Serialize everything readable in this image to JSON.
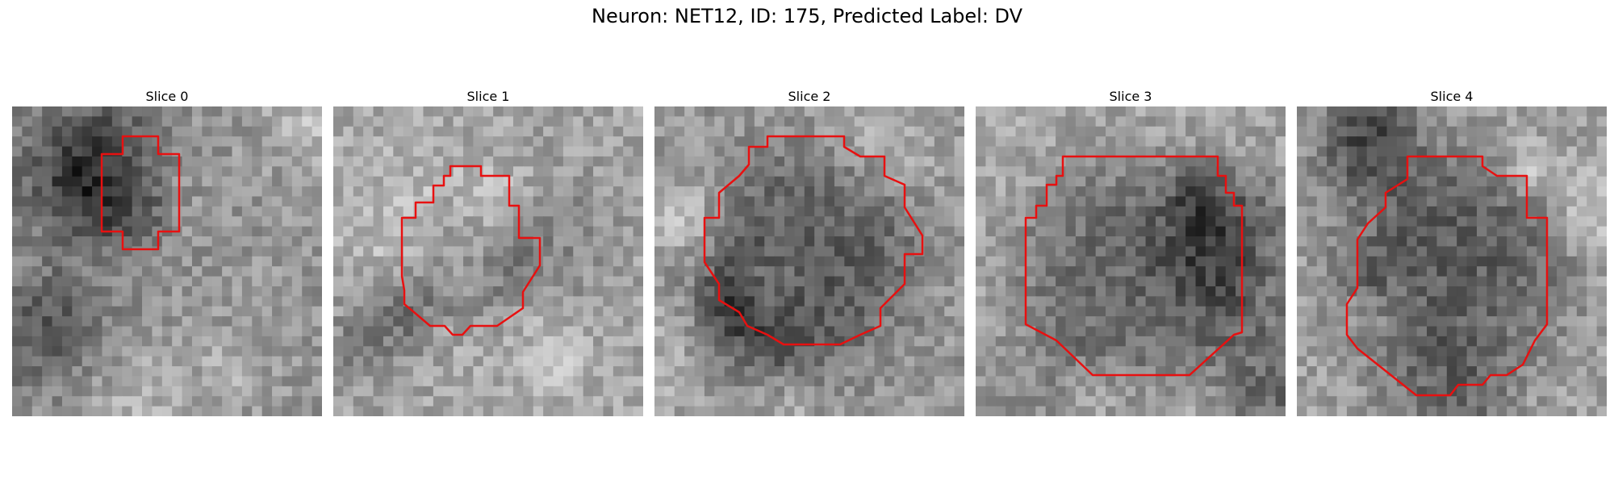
{
  "figure": {
    "title": "Neuron: NET12, ID: 175, Predicted Label: DV"
  },
  "panels": [
    {
      "title": "Slice 0",
      "seed": 11,
      "base": 150,
      "contrast": 70,
      "dark_center": [
        0.38,
        0.35
      ],
      "dark_radius": 0.12,
      "dark_amount": 40
    },
    {
      "title": "Slice 1",
      "seed": 23,
      "base": 165,
      "contrast": 65,
      "dark_center": [
        0.46,
        0.5
      ],
      "dark_radius": 0.18,
      "dark_amount": 60
    },
    {
      "title": "Slice 2",
      "seed": 37,
      "base": 150,
      "contrast": 55,
      "dark_center": [
        0.5,
        0.5
      ],
      "dark_radius": 0.3,
      "dark_amount": 55
    },
    {
      "title": "Slice 3",
      "seed": 41,
      "base": 165,
      "contrast": 60,
      "dark_center": [
        0.5,
        0.55
      ],
      "dark_radius": 0.33,
      "dark_amount": 55
    },
    {
      "title": "Slice 4",
      "seed": 59,
      "base": 160,
      "contrast": 55,
      "dark_center": [
        0.52,
        0.55
      ],
      "dark_radius": 0.33,
      "dark_amount": 70
    }
  ],
  "contour_color": "#e81010"
}
